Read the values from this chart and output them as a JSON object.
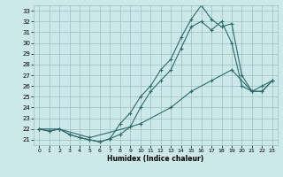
{
  "xlabel": "Humidex (Indice chaleur)",
  "bg_color": "#cce8e8",
  "grid_color": "#9bbfbf",
  "line_color": "#2d6b6b",
  "xlim": [
    -0.5,
    23.5
  ],
  "ylim": [
    20.5,
    33.5
  ],
  "xticks": [
    0,
    1,
    2,
    3,
    4,
    5,
    6,
    7,
    8,
    9,
    10,
    11,
    12,
    13,
    14,
    15,
    16,
    17,
    18,
    19,
    20,
    21,
    22,
    23
  ],
  "yticks": [
    21,
    22,
    23,
    24,
    25,
    26,
    27,
    28,
    29,
    30,
    31,
    32,
    33
  ],
  "line1_x": [
    0,
    1,
    2,
    3,
    4,
    5,
    6,
    7,
    8,
    9,
    10,
    11,
    12,
    13,
    14,
    15,
    16,
    17,
    18,
    19,
    20,
    21,
    22,
    23
  ],
  "line1_y": [
    22,
    21.8,
    22,
    21.5,
    21.2,
    21.0,
    20.8,
    21.1,
    21.5,
    22.2,
    24.0,
    25.5,
    26.5,
    27.5,
    29.5,
    31.5,
    32.0,
    31.2,
    32.0,
    30.0,
    26.0,
    25.5,
    25.5,
    26.5
  ],
  "line2_x": [
    0,
    1,
    2,
    3,
    4,
    5,
    6,
    7,
    8,
    9,
    10,
    11,
    12,
    13,
    14,
    15,
    16,
    17,
    18,
    19,
    20,
    21,
    22,
    23
  ],
  "line2_y": [
    22,
    21.8,
    22,
    21.5,
    21.2,
    21.0,
    20.8,
    21.1,
    22.5,
    23.5,
    25.0,
    26.0,
    27.5,
    28.5,
    30.5,
    32.2,
    33.5,
    32.2,
    31.5,
    31.8,
    27.0,
    25.5,
    26.0,
    26.5
  ],
  "line3_x": [
    0,
    2,
    5,
    9,
    10,
    13,
    15,
    17,
    19,
    21,
    22,
    23
  ],
  "line3_y": [
    22,
    22,
    21.2,
    22.2,
    22.5,
    24.0,
    25.5,
    26.5,
    27.5,
    25.5,
    25.5,
    26.5
  ]
}
